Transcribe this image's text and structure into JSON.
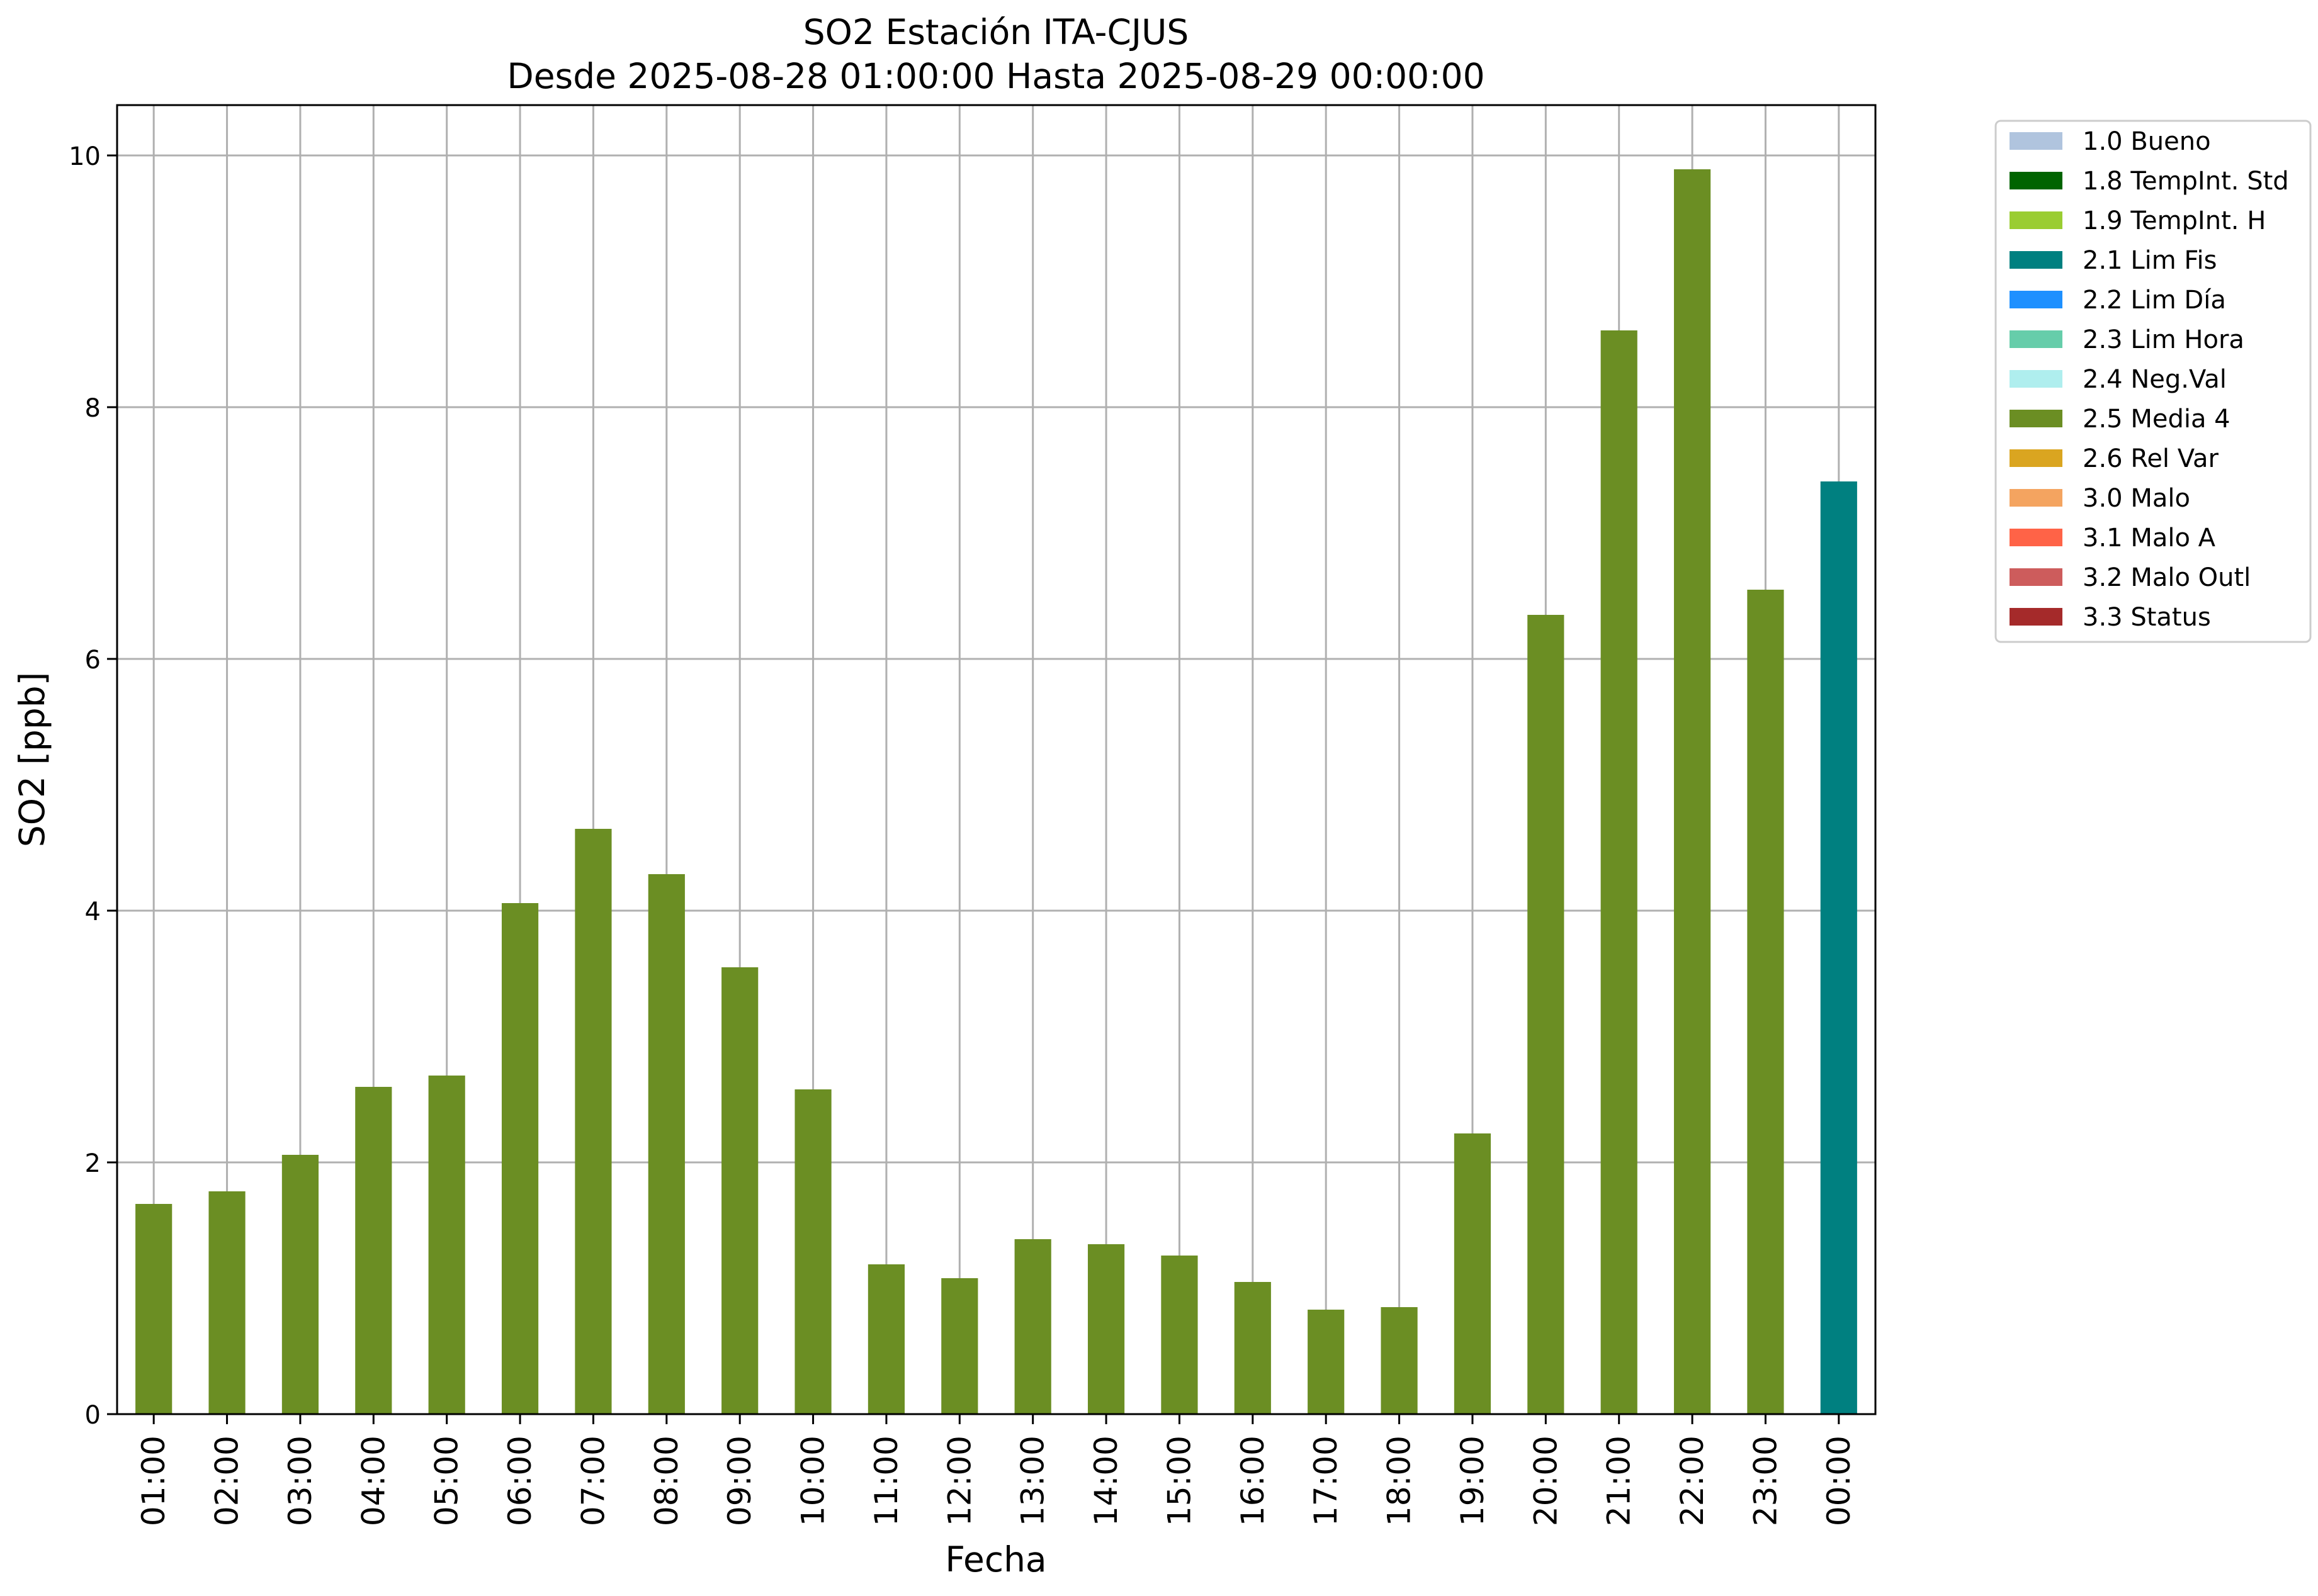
{
  "chart_data": {
    "type": "bar",
    "title": "SO2 Estación ITA-CJUS",
    "subtitle": "Desde 2025-08-28 01:00:00 Hasta 2025-08-29 00:00:00",
    "xlabel": "Fecha",
    "ylabel": "SO2 [ppb]",
    "ylim": [
      0,
      10.4
    ],
    "yticks": [
      0,
      2,
      4,
      6,
      8,
      10
    ],
    "grid": true,
    "legend_position": "outside-right",
    "categories": [
      "01:00",
      "02:00",
      "03:00",
      "04:00",
      "05:00",
      "06:00",
      "07:00",
      "08:00",
      "09:00",
      "10:00",
      "11:00",
      "12:00",
      "13:00",
      "14:00",
      "15:00",
      "16:00",
      "17:00",
      "18:00",
      "19:00",
      "20:00",
      "21:00",
      "22:00",
      "23:00",
      "00:00"
    ],
    "values": [
      1.67,
      1.77,
      2.06,
      2.6,
      2.69,
      4.06,
      4.65,
      4.29,
      3.55,
      2.58,
      1.19,
      1.08,
      1.39,
      1.35,
      1.26,
      1.05,
      0.83,
      0.85,
      2.23,
      6.35,
      8.61,
      9.89,
      6.55,
      7.41
    ],
    "bar_flags": [
      "2.5 Media 4",
      "2.5 Media 4",
      "2.5 Media 4",
      "2.5 Media 4",
      "2.5 Media 4",
      "2.5 Media 4",
      "2.5 Media 4",
      "2.5 Media 4",
      "2.5 Media 4",
      "2.5 Media 4",
      "2.5 Media 4",
      "2.5 Media 4",
      "2.5 Media 4",
      "2.5 Media 4",
      "2.5 Media 4",
      "2.5 Media 4",
      "2.5 Media 4",
      "2.5 Media 4",
      "2.5 Media 4",
      "2.5 Media 4",
      "2.5 Media 4",
      "2.5 Media 4",
      "2.5 Media 4",
      "2.1 Lim Fis"
    ],
    "legend": [
      {
        "label": "1.0 Bueno",
        "color": "#b0c4de"
      },
      {
        "label": "1.8 TempInt. Std",
        "color": "#006400"
      },
      {
        "label": "1.9 TempInt. H",
        "color": "#9acd32"
      },
      {
        "label": "2.1 Lim Fis",
        "color": "#008080"
      },
      {
        "label": "2.2 Lim Día",
        "color": "#1e90ff"
      },
      {
        "label": "2.3 Lim Hora",
        "color": "#66cdaa"
      },
      {
        "label": "2.4 Neg.Val",
        "color": "#afeeee"
      },
      {
        "label": "2.5 Media 4",
        "color": "#6b8e23"
      },
      {
        "label": "2.6 Rel Var",
        "color": "#daa520"
      },
      {
        "label": "3.0 Malo",
        "color": "#f4a460"
      },
      {
        "label": "3.1 Malo A",
        "color": "#ff6347"
      },
      {
        "label": "3.2 Malo Outl",
        "color": "#cd5c5c"
      },
      {
        "label": "3.3 Status",
        "color": "#a52a2a"
      }
    ]
  }
}
